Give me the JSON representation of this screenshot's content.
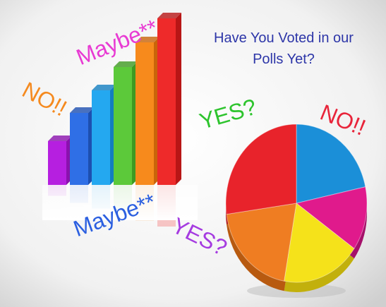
{
  "title": {
    "line1": "Have You Voted in our",
    "line2": "Polls Yet?"
  },
  "labels": [
    "Maybe**",
    "NO!!",
    "YES?",
    "NO!!",
    "Maybe**",
    "YES?"
  ]
}
